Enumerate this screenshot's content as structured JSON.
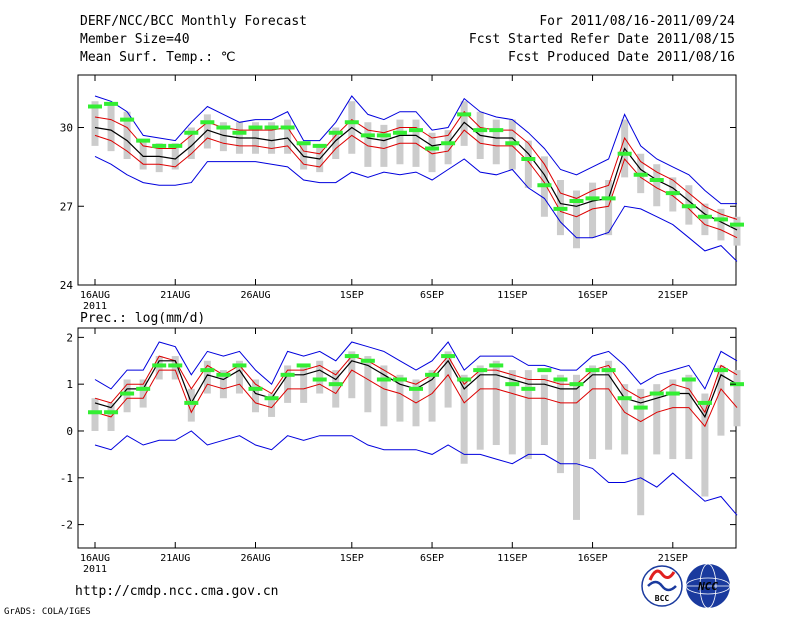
{
  "header": {
    "title": "DERF/NCC/BCC Monthly Forecast",
    "member_size": "Member Size=40",
    "variable": "Mean Surf. Temp.: ℃",
    "forecast_period": "For 2011/08/16-2011/09/24",
    "fcst_started": "Fcst Started Refer Date 2011/08/15",
    "fcst_produced": "Fcst Produced Date 2011/08/16"
  },
  "footer": {
    "url": "http://cmdp.ncc.cma.gov.cn",
    "grads_credit": "GrADS: COLA/IGES",
    "logo_bcc_text": "BCC",
    "logo_ncc_text": "NCC"
  },
  "colors": {
    "envelope": "#0000dd",
    "spread": "#dd0000",
    "mean": "#000000",
    "box": "#cccccc",
    "member": "#33ee33"
  },
  "chart_data": [
    {
      "type": "box-ensemble",
      "title": "Mean Surf. Temp.: ℃",
      "ylim": [
        24,
        32
      ],
      "yticks": [
        24,
        27,
        30
      ],
      "xtick_days": [
        0,
        5,
        10,
        16,
        21,
        26,
        31,
        36
      ],
      "xtick_labels": [
        "16AUG",
        "21AUG",
        "26AUG",
        "1SEP",
        "6SEP",
        "11SEP",
        "16SEP",
        "21SEP"
      ],
      "xtick_sublabel": "2011",
      "days": 40,
      "max": [
        31.2,
        31.0,
        30.6,
        29.7,
        29.6,
        29.5,
        30.2,
        30.8,
        30.5,
        30.2,
        30.3,
        30.3,
        30.6,
        29.5,
        29.5,
        30.2,
        31.2,
        30.5,
        30.3,
        30.6,
        30.6,
        29.9,
        30.0,
        31.1,
        30.6,
        30.4,
        30.3,
        29.8,
        29.2,
        28.4,
        28.2,
        28.5,
        28.8,
        30.5,
        29.3,
        28.8,
        28.5,
        28.2,
        27.6,
        27.1,
        27.1
      ],
      "min": [
        28.9,
        28.6,
        28.2,
        27.9,
        27.8,
        27.8,
        27.9,
        28.7,
        28.7,
        28.7,
        28.7,
        28.6,
        28.5,
        28.0,
        27.9,
        27.9,
        28.3,
        28.1,
        28.3,
        28.2,
        28.3,
        28.0,
        28.4,
        28.8,
        28.3,
        28.2,
        28.4,
        27.7,
        27.3,
        26.4,
        25.8,
        25.8,
        26.0,
        27.0,
        26.9,
        26.6,
        26.3,
        25.8,
        25.3,
        25.5,
        24.9
      ],
      "upper": [
        30.4,
        30.3,
        30.0,
        29.3,
        29.2,
        29.2,
        29.7,
        30.2,
        30.0,
        29.9,
        29.9,
        29.9,
        30.0,
        29.1,
        29.0,
        29.7,
        30.3,
        29.9,
        29.8,
        30.0,
        30.0,
        29.6,
        29.7,
        30.6,
        30.0,
        29.9,
        29.9,
        29.4,
        28.6,
        27.5,
        27.3,
        27.6,
        27.8,
        29.6,
        28.7,
        28.3,
        28.0,
        27.5,
        27.0,
        26.7,
        26.5
      ],
      "mean": [
        30.0,
        29.9,
        29.5,
        28.9,
        28.9,
        28.8,
        29.3,
        29.9,
        29.7,
        29.6,
        29.6,
        29.5,
        29.6,
        28.9,
        28.8,
        29.5,
        30.0,
        29.6,
        29.5,
        29.7,
        29.7,
        29.3,
        29.4,
        30.2,
        29.7,
        29.6,
        29.6,
        29.0,
        28.2,
        27.1,
        27.0,
        27.2,
        27.3,
        29.2,
        28.4,
        28.0,
        27.7,
        27.2,
        26.7,
        26.4,
        26.1
      ],
      "lower": [
        29.7,
        29.5,
        29.1,
        28.6,
        28.6,
        28.5,
        29.0,
        29.6,
        29.4,
        29.3,
        29.3,
        29.2,
        29.3,
        28.6,
        28.5,
        29.2,
        29.7,
        29.3,
        29.2,
        29.4,
        29.4,
        29.0,
        29.1,
        29.9,
        29.4,
        29.3,
        29.3,
        28.7,
        27.9,
        26.8,
        26.6,
        26.9,
        27.0,
        28.8,
        28.1,
        27.7,
        27.4,
        26.9,
        26.3,
        26.1,
        25.8
      ],
      "box_high": [
        31.0,
        30.9,
        30.6,
        29.5,
        29.4,
        29.4,
        30.0,
        30.5,
        30.2,
        30.2,
        30.2,
        30.2,
        30.3,
        29.4,
        29.3,
        30.0,
        31.0,
        30.2,
        30.1,
        30.3,
        30.3,
        29.8,
        29.9,
        31.0,
        30.6,
        30.3,
        30.3,
        29.5,
        28.9,
        28.0,
        27.6,
        27.9,
        28.0,
        30.3,
        29.0,
        28.6,
        28.1,
        27.8,
        27.1,
        26.9,
        26.6
      ],
      "box_low": [
        29.3,
        29.1,
        28.8,
        28.4,
        28.3,
        28.4,
        28.8,
        29.2,
        29.1,
        29.0,
        29.0,
        29.0,
        29.0,
        28.4,
        28.3,
        28.8,
        29.0,
        28.5,
        28.5,
        28.6,
        28.5,
        28.3,
        28.6,
        29.3,
        28.8,
        28.6,
        28.4,
        27.7,
        26.6,
        25.9,
        25.4,
        25.8,
        25.9,
        28.1,
        27.5,
        27.0,
        26.8,
        26.3,
        25.9,
        25.7,
        25.5
      ],
      "marker": [
        30.8,
        30.9,
        30.3,
        29.5,
        29.3,
        29.3,
        29.8,
        30.2,
        30.0,
        29.8,
        30.0,
        30.0,
        30.0,
        29.4,
        29.3,
        29.8,
        30.2,
        29.7,
        29.7,
        29.8,
        29.9,
        29.2,
        29.4,
        30.5,
        29.9,
        29.9,
        29.4,
        28.8,
        27.8,
        26.9,
        27.2,
        27.3,
        27.3,
        29.0,
        28.2,
        28.0,
        27.5,
        27.0,
        26.6,
        26.5,
        26.3
      ]
    },
    {
      "type": "box-ensemble",
      "title": "Prec.: log(mm/d)",
      "ylim": [
        -2.5,
        2.2
      ],
      "yticks": [
        -2,
        -1,
        0,
        1,
        2
      ],
      "xtick_days": [
        0,
        5,
        10,
        16,
        21,
        26,
        31,
        36
      ],
      "xtick_labels": [
        "16AUG",
        "21AUG",
        "26AUG",
        "1SEP",
        "6SEP",
        "11SEP",
        "16SEP",
        "21SEP"
      ],
      "xtick_sublabel": "2011",
      "days": 40,
      "max": [
        1.1,
        0.9,
        1.3,
        1.3,
        1.9,
        1.8,
        1.2,
        1.7,
        1.6,
        1.7,
        1.3,
        1.0,
        1.7,
        1.6,
        1.7,
        1.5,
        1.9,
        1.8,
        1.7,
        1.5,
        1.3,
        1.5,
        1.9,
        1.3,
        1.6,
        1.6,
        1.6,
        1.4,
        1.4,
        1.3,
        1.3,
        1.6,
        1.7,
        1.4,
        1.0,
        1.2,
        1.3,
        1.4,
        0.9,
        1.7,
        1.5
      ],
      "min": [
        -0.3,
        -0.4,
        -0.1,
        -0.3,
        -0.2,
        -0.2,
        0.0,
        -0.3,
        -0.2,
        -0.1,
        -0.3,
        -0.4,
        -0.1,
        -0.2,
        -0.1,
        -0.1,
        -0.1,
        -0.3,
        -0.4,
        -0.4,
        -0.4,
        -0.5,
        -0.3,
        -0.5,
        -0.5,
        -0.6,
        -0.7,
        -0.5,
        -0.5,
        -0.7,
        -0.7,
        -0.8,
        -1.1,
        -1.1,
        -1.0,
        -1.2,
        -0.9,
        -1.2,
        -1.5,
        -1.4,
        -1.8
      ],
      "upper": [
        0.7,
        0.6,
        1.0,
        1.0,
        1.6,
        1.5,
        0.9,
        1.4,
        1.2,
        1.4,
        1.0,
        0.8,
        1.3,
        1.3,
        1.4,
        1.2,
        1.6,
        1.5,
        1.3,
        1.1,
        1.0,
        1.2,
        1.6,
        1.0,
        1.3,
        1.3,
        1.2,
        1.1,
        1.1,
        1.0,
        1.0,
        1.3,
        1.4,
        0.9,
        0.7,
        0.8,
        1.0,
        0.9,
        0.4,
        1.4,
        1.2
      ],
      "mean": [
        0.6,
        0.5,
        0.9,
        0.9,
        1.5,
        1.5,
        0.6,
        1.2,
        1.1,
        1.3,
        0.8,
        0.7,
        1.2,
        1.2,
        1.3,
        1.1,
        1.5,
        1.4,
        1.2,
        1.0,
        0.9,
        1.1,
        1.5,
        0.9,
        1.2,
        1.2,
        1.1,
        1.0,
        1.0,
        0.9,
        0.9,
        1.2,
        1.2,
        0.7,
        0.6,
        0.7,
        0.8,
        0.8,
        0.3,
        1.2,
        1.0
      ],
      "lower": [
        0.4,
        0.3,
        0.7,
        0.7,
        1.3,
        1.3,
        0.4,
        1.0,
        0.9,
        1.0,
        0.6,
        0.5,
        0.9,
        0.9,
        1.0,
        0.8,
        1.3,
        1.1,
        0.9,
        0.8,
        0.6,
        0.8,
        1.2,
        0.6,
        0.9,
        0.9,
        0.8,
        0.7,
        0.7,
        0.6,
        0.6,
        0.9,
        0.9,
        0.4,
        0.2,
        0.4,
        0.5,
        0.5,
        0.1,
        0.9,
        0.5
      ],
      "box_high": [
        0.7,
        0.6,
        1.1,
        1.1,
        1.6,
        1.6,
        0.9,
        1.5,
        1.3,
        1.5,
        1.1,
        0.8,
        1.4,
        1.4,
        1.5,
        1.3,
        1.7,
        1.6,
        1.4,
        1.2,
        1.1,
        1.3,
        1.7,
        1.2,
        1.4,
        1.5,
        1.3,
        1.3,
        1.2,
        1.2,
        1.2,
        1.4,
        1.5,
        1.0,
        0.9,
        1.0,
        1.1,
        1.2,
        0.8,
        1.4,
        1.3
      ],
      "box_low": [
        0.0,
        0.0,
        0.4,
        0.5,
        1.1,
        1.1,
        0.2,
        0.8,
        0.7,
        0.8,
        0.4,
        0.3,
        0.6,
        0.6,
        0.8,
        0.5,
        0.7,
        0.4,
        0.1,
        0.2,
        0.1,
        0.2,
        0.5,
        -0.7,
        -0.4,
        -0.3,
        -0.5,
        -0.6,
        -0.3,
        -0.9,
        -1.9,
        -0.6,
        -0.4,
        -0.5,
        -1.8,
        -0.5,
        -0.6,
        -0.6,
        -1.4,
        -0.1,
        0.1
      ],
      "marker": [
        0.4,
        0.4,
        0.8,
        0.9,
        1.4,
        1.4,
        0.6,
        1.3,
        1.2,
        1.4,
        0.9,
        0.7,
        1.2,
        1.4,
        1.1,
        1.0,
        1.6,
        1.5,
        1.1,
        1.1,
        0.9,
        1.2,
        1.6,
        1.1,
        1.3,
        1.4,
        1.0,
        0.9,
        1.3,
        1.1,
        1.0,
        1.3,
        1.3,
        0.7,
        0.5,
        0.8,
        0.8,
        1.1,
        0.6,
        1.3,
        1.0
      ]
    }
  ]
}
